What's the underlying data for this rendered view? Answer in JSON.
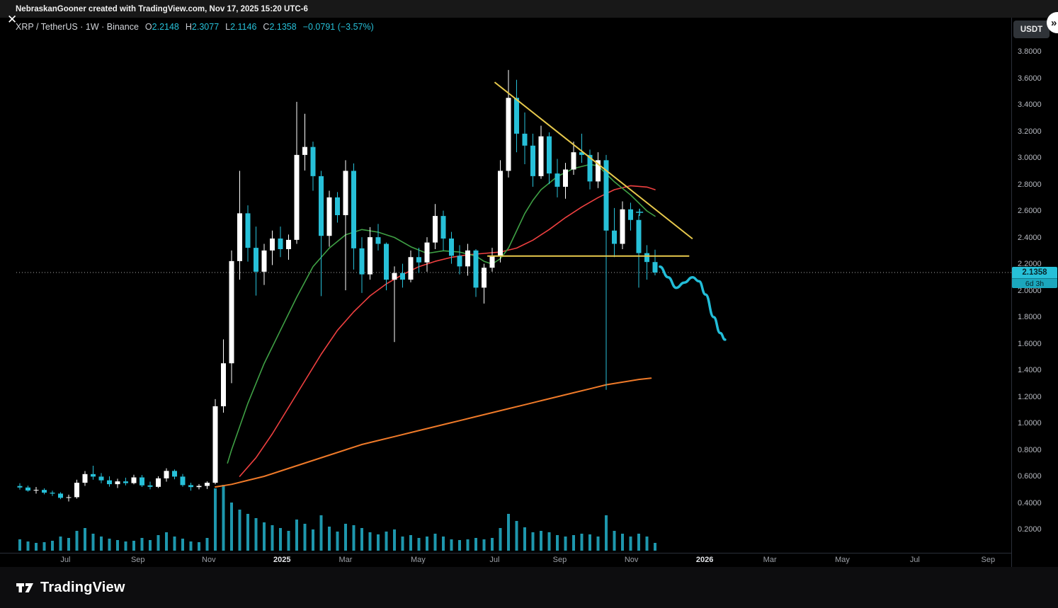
{
  "topbar": {
    "attribution": "NebraskanGooner created with TradingView.com, Nov 17, 2025 15:20 UTC-6"
  },
  "buttons": {
    "close": "✕",
    "expand": "»",
    "currency": "USDT"
  },
  "legend": {
    "symbol": "XRP / TetherUS · 1W · Binance",
    "o_label": "O",
    "o": "2.2148",
    "h_label": "H",
    "h": "2.3077",
    "l_label": "L",
    "l": "2.1146",
    "c_label": "C",
    "c": "2.1358",
    "change": "−0.0791 (−3.57%)"
  },
  "price_label": {
    "value": "2.1358",
    "countdown": "6d 3h"
  },
  "footer": {
    "brand": "TradingView"
  },
  "colors": {
    "background": "#000000",
    "up": "#ffffff",
    "down": "#27c0d8",
    "volume": "#1e97ad",
    "ma_fast": "#3fa045",
    "ma_mid": "#ef4040",
    "ma_slow": "#ef7a29",
    "drawing": "#e7c94c",
    "projection": "#22bdd8",
    "last_price_line": "#aaaaaa",
    "axis_text": "#b7bac1"
  },
  "chart_data": {
    "type": "candlestick",
    "interval": "1W",
    "first_week": "2024-05-27",
    "last_price": 2.1358,
    "price_axis_ticks": [
      "3.8000",
      "3.6000",
      "3.4000",
      "3.2000",
      "3.0000",
      "2.8000",
      "2.6000",
      "2.4000",
      "2.2000",
      "2.0000",
      "1.8000",
      "1.6000",
      "1.4000",
      "1.2000",
      "1.0000",
      "0.8000",
      "0.6000",
      "0.4000",
      "0.2000"
    ],
    "time_axis_labels": [
      {
        "label": "Jul",
        "week": 5.6
      },
      {
        "label": "Sep",
        "week": 14.5
      },
      {
        "label": "Nov",
        "week": 23.2
      },
      {
        "label": "2025",
        "week": 32.2,
        "year": true
      },
      {
        "label": "Mar",
        "week": 40.0
      },
      {
        "label": "May",
        "week": 48.9
      },
      {
        "label": "Jul",
        "week": 58.3
      },
      {
        "label": "Sep",
        "week": 66.3
      },
      {
        "label": "Nov",
        "week": 75.1
      },
      {
        "label": "2026",
        "week": 84.1,
        "year": true
      },
      {
        "label": "Mar",
        "week": 92.1
      },
      {
        "label": "May",
        "week": 101.0
      },
      {
        "label": "Jul",
        "week": 109.9
      },
      {
        "label": "Sep",
        "week": 118.9
      }
    ],
    "candles": [
      [
        0.527,
        0.548,
        0.5,
        0.516,
        16
      ],
      [
        0.516,
        0.53,
        0.485,
        0.493,
        13
      ],
      [
        0.493,
        0.52,
        0.47,
        0.498,
        11
      ],
      [
        0.498,
        0.51,
        0.465,
        0.477,
        12
      ],
      [
        0.477,
        0.492,
        0.452,
        0.47,
        14
      ],
      [
        0.47,
        0.48,
        0.428,
        0.438,
        20
      ],
      [
        0.438,
        0.462,
        0.411,
        0.443,
        18
      ],
      [
        0.443,
        0.575,
        0.432,
        0.552,
        28
      ],
      [
        0.552,
        0.64,
        0.528,
        0.617,
        32
      ],
      [
        0.617,
        0.68,
        0.575,
        0.598,
        24
      ],
      [
        0.598,
        0.625,
        0.548,
        0.57,
        20
      ],
      [
        0.57,
        0.6,
        0.522,
        0.541,
        17
      ],
      [
        0.541,
        0.582,
        0.512,
        0.562,
        15
      ],
      [
        0.562,
        0.59,
        0.532,
        0.549,
        13
      ],
      [
        0.549,
        0.612,
        0.54,
        0.592,
        14
      ],
      [
        0.592,
        0.61,
        0.52,
        0.532,
        18
      ],
      [
        0.532,
        0.56,
        0.502,
        0.521,
        15
      ],
      [
        0.521,
        0.601,
        0.512,
        0.585,
        22
      ],
      [
        0.585,
        0.661,
        0.56,
        0.641,
        26
      ],
      [
        0.641,
        0.652,
        0.578,
        0.598,
        20
      ],
      [
        0.598,
        0.618,
        0.522,
        0.534,
        17
      ],
      [
        0.534,
        0.552,
        0.492,
        0.519,
        13
      ],
      [
        0.519,
        0.542,
        0.502,
        0.528,
        12
      ],
      [
        0.528,
        0.562,
        0.505,
        0.552,
        18
      ],
      [
        0.552,
        1.182,
        0.54,
        1.128,
        88
      ],
      [
        1.128,
        1.632,
        1.08,
        1.452,
        93
      ],
      [
        1.452,
        2.302,
        1.302,
        2.222,
        68
      ],
      [
        2.222,
        2.902,
        2.082,
        2.582,
        58
      ],
      [
        2.582,
        2.642,
        2.218,
        2.322,
        52
      ],
      [
        2.322,
        2.482,
        1.962,
        2.142,
        46
      ],
      [
        2.142,
        2.352,
        2.042,
        2.302,
        40
      ],
      [
        2.302,
        2.452,
        2.192,
        2.392,
        36
      ],
      [
        2.392,
        2.482,
        2.252,
        2.312,
        32
      ],
      [
        2.312,
        2.422,
        2.232,
        2.382,
        28
      ],
      [
        2.382,
        3.422,
        2.352,
        3.022,
        44
      ],
      [
        3.022,
        3.332,
        2.905,
        3.082,
        38
      ],
      [
        3.082,
        3.122,
        2.752,
        2.862,
        30
      ],
      [
        2.862,
        2.902,
        1.958,
        2.412,
        50
      ],
      [
        2.412,
        2.752,
        2.33,
        2.702,
        34
      ],
      [
        2.702,
        2.742,
        2.512,
        2.568,
        27
      ],
      [
        2.568,
        2.982,
        2.002,
        2.902,
        38
      ],
      [
        2.902,
        2.958,
        2.158,
        2.318,
        36
      ],
      [
        2.318,
        2.402,
        1.982,
        2.122,
        32
      ],
      [
        2.122,
        2.478,
        2.082,
        2.402,
        26
      ],
      [
        2.402,
        2.502,
        2.302,
        2.352,
        23
      ],
      [
        2.352,
        2.362,
        2.002,
        2.082,
        27
      ],
      [
        2.082,
        2.182,
        1.612,
        2.132,
        30
      ],
      [
        2.132,
        2.202,
        2.022,
        2.082,
        20
      ],
      [
        2.082,
        2.302,
        2.062,
        2.252,
        22
      ],
      [
        2.252,
        2.322,
        2.132,
        2.212,
        18
      ],
      [
        2.212,
        2.402,
        2.142,
        2.362,
        20
      ],
      [
        2.362,
        2.652,
        2.312,
        2.562,
        24
      ],
      [
        2.562,
        2.602,
        2.302,
        2.392,
        20
      ],
      [
        2.392,
        2.442,
        2.202,
        2.262,
        16
      ],
      [
        2.262,
        2.342,
        2.122,
        2.182,
        15
      ],
      [
        2.182,
        2.352,
        2.112,
        2.302,
        16
      ],
      [
        2.302,
        2.312,
        1.952,
        2.022,
        18
      ],
      [
        2.022,
        2.202,
        1.902,
        2.172,
        16
      ],
      [
        2.172,
        2.322,
        2.142,
        2.262,
        18
      ],
      [
        2.262,
        2.982,
        2.212,
        2.902,
        32
      ],
      [
        2.902,
        3.662,
        2.852,
        3.452,
        52
      ],
      [
        3.452,
        3.588,
        3.042,
        3.182,
        42
      ],
      [
        3.182,
        3.342,
        2.952,
        3.092,
        33
      ],
      [
        3.092,
        3.182,
        2.782,
        2.862,
        26
      ],
      [
        2.862,
        3.242,
        2.842,
        3.162,
        28
      ],
      [
        3.162,
        3.192,
        2.802,
        2.882,
        26
      ],
      [
        2.882,
        2.992,
        2.702,
        2.782,
        22
      ],
      [
        2.782,
        2.962,
        2.692,
        2.912,
        20
      ],
      [
        2.912,
        3.122,
        2.872,
        3.042,
        22
      ],
      [
        3.042,
        3.182,
        2.962,
        3.022,
        24
      ],
      [
        3.022,
        3.062,
        2.762,
        2.822,
        23
      ],
      [
        2.822,
        3.042,
        2.772,
        2.982,
        20
      ],
      [
        2.982,
        3.022,
        1.252,
        2.452,
        50
      ],
      [
        2.452,
        2.622,
        2.252,
        2.352,
        28
      ],
      [
        2.352,
        2.672,
        2.312,
        2.612,
        24
      ],
      [
        2.612,
        2.662,
        2.452,
        2.532,
        20
      ],
      [
        2.532,
        2.572,
        2.022,
        2.282,
        24
      ],
      [
        2.282,
        2.342,
        2.082,
        2.215,
        20
      ],
      [
        2.2148,
        2.3077,
        2.1146,
        2.1358,
        11
      ]
    ],
    "ma_green": [
      [
        25.5,
        0.7
      ],
      [
        26,
        0.8
      ],
      [
        28,
        1.15
      ],
      [
        30,
        1.45
      ],
      [
        32,
        1.7
      ],
      [
        34,
        1.95
      ],
      [
        36,
        2.18
      ],
      [
        38,
        2.32
      ],
      [
        40,
        2.42
      ],
      [
        42,
        2.46
      ],
      [
        44,
        2.44
      ],
      [
        46,
        2.4
      ],
      [
        48,
        2.33
      ],
      [
        50,
        2.28
      ],
      [
        52,
        2.3
      ],
      [
        54,
        2.29
      ],
      [
        56,
        2.26
      ],
      [
        57,
        2.22
      ],
      [
        58,
        2.2
      ],
      [
        59,
        2.24
      ],
      [
        60,
        2.32
      ],
      [
        61,
        2.45
      ],
      [
        62,
        2.58
      ],
      [
        63,
        2.68
      ],
      [
        64,
        2.76
      ],
      [
        66,
        2.86
      ],
      [
        68,
        2.92
      ],
      [
        70,
        2.95
      ],
      [
        71,
        2.94
      ],
      [
        72,
        2.88
      ],
      [
        73,
        2.82
      ],
      [
        74,
        2.77
      ],
      [
        75,
        2.72
      ],
      [
        76,
        2.66
      ],
      [
        77,
        2.6
      ],
      [
        78,
        2.56
      ]
    ],
    "ma_red": [
      [
        27,
        0.6
      ],
      [
        29,
        0.74
      ],
      [
        31,
        0.92
      ],
      [
        33,
        1.12
      ],
      [
        35,
        1.32
      ],
      [
        37,
        1.52
      ],
      [
        39,
        1.7
      ],
      [
        41,
        1.84
      ],
      [
        43,
        1.96
      ],
      [
        45,
        2.05
      ],
      [
        47,
        2.12
      ],
      [
        49,
        2.18
      ],
      [
        51,
        2.22
      ],
      [
        53,
        2.25
      ],
      [
        55,
        2.27
      ],
      [
        57,
        2.28
      ],
      [
        59,
        2.29
      ],
      [
        61,
        2.32
      ],
      [
        63,
        2.38
      ],
      [
        65,
        2.46
      ],
      [
        67,
        2.55
      ],
      [
        69,
        2.63
      ],
      [
        71,
        2.7
      ],
      [
        73,
        2.76
      ],
      [
        75,
        2.79
      ],
      [
        77,
        2.78
      ],
      [
        78,
        2.76
      ]
    ],
    "ma_orange": [
      [
        24,
        0.52
      ],
      [
        26,
        0.54
      ],
      [
        28,
        0.57
      ],
      [
        30,
        0.6
      ],
      [
        32,
        0.64
      ],
      [
        34,
        0.68
      ],
      [
        36,
        0.72
      ],
      [
        38,
        0.76
      ],
      [
        40,
        0.8
      ],
      [
        42,
        0.84
      ],
      [
        44,
        0.87
      ],
      [
        46,
        0.9
      ],
      [
        48,
        0.93
      ],
      [
        50,
        0.96
      ],
      [
        52,
        0.99
      ],
      [
        54,
        1.02
      ],
      [
        56,
        1.05
      ],
      [
        58,
        1.08
      ],
      [
        60,
        1.11
      ],
      [
        62,
        1.14
      ],
      [
        64,
        1.17
      ],
      [
        66,
        1.2
      ],
      [
        68,
        1.23
      ],
      [
        70,
        1.26
      ],
      [
        72,
        1.29
      ],
      [
        74,
        1.31
      ],
      [
        76,
        1.33
      ],
      [
        77.5,
        1.34
      ]
    ],
    "drawings": {
      "trendline": {
        "from": [
          58.3,
          3.57
        ],
        "to": [
          82.6,
          2.39
        ]
      },
      "hline": {
        "price": 2.26,
        "from_week": 57.4,
        "to_week": 82.2
      },
      "projection": [
        [
          78.6,
          2.18
        ],
        [
          79.6,
          2.1
        ],
        [
          80.6,
          2.02
        ],
        [
          81.6,
          2.06
        ],
        [
          82.6,
          2.1
        ],
        [
          83.4,
          2.07
        ],
        [
          84.2,
          1.97
        ],
        [
          85.2,
          1.8
        ],
        [
          86.0,
          1.68
        ],
        [
          86.6,
          1.63
        ]
      ],
      "plus_marker": [
        76.1,
        2.59
      ]
    }
  }
}
